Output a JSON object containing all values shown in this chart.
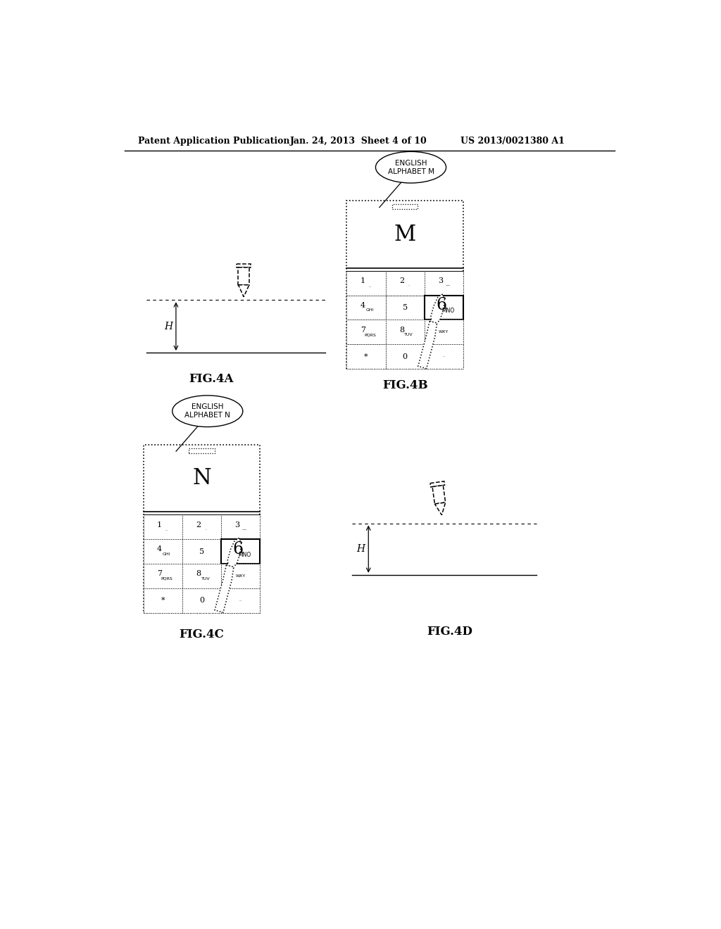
{
  "bg_color": "#ffffff",
  "header_text1": "Patent Application Publication",
  "header_text2": "Jan. 24, 2013  Sheet 4 of 10",
  "header_text3": "US 2013/0021380 A1",
  "fig4a_label": "FIG.4A",
  "fig4b_label": "FIG.4B",
  "fig4c_label": "FIG.4C",
  "fig4d_label": "FIG.4D",
  "bubble_b_text": "ENGLISH\nALPHABET M",
  "bubble_c_text": "ENGLISH\nALPHABET N",
  "display_letter_b": "M",
  "display_letter_c": "N"
}
